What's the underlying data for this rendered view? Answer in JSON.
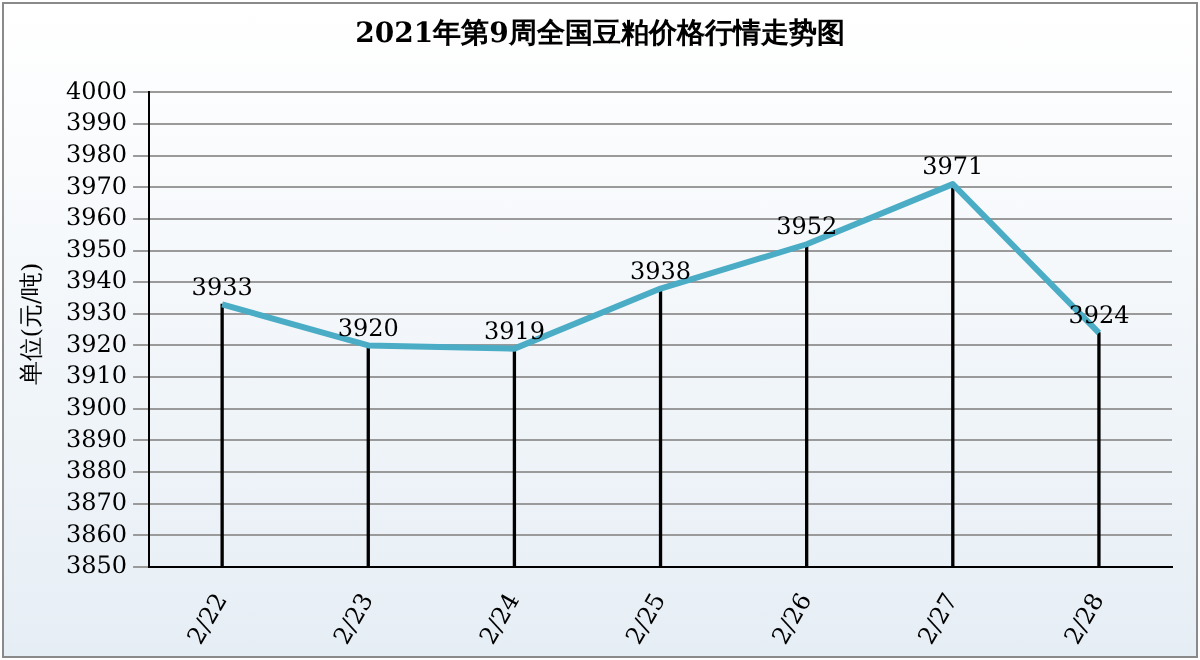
{
  "chart_data": {
    "type": "line",
    "title": "2021年第9周全国豆粕价格行情走势图",
    "ylabel": "单位(元/吨)",
    "categories": [
      "2/22",
      "2/23",
      "2/24",
      "2/25",
      "2/26",
      "2/27",
      "2/28"
    ],
    "series": [
      {
        "type": "bar",
        "color": "#000000",
        "values": [
          3933,
          3920,
          3919,
          3938,
          3952,
          3971,
          3924
        ]
      },
      {
        "color": "#4bacc6",
        "values": [
          3933,
          3920,
          3919,
          3938,
          3952,
          3971,
          3924
        ],
        "value_labels": [
          "3933",
          "3920",
          "3919",
          "3938",
          "3952",
          "3971",
          "3924"
        ]
      }
    ],
    "ylim": [
      3850,
      4000
    ],
    "yticks": [
      3850,
      3860,
      3870,
      3880,
      3890,
      3900,
      3910,
      3920,
      3930,
      3940,
      3950,
      3960,
      3970,
      3980,
      3990,
      4000
    ],
    "grid": "y",
    "legend": false,
    "marker": "none",
    "line_style": "solid"
  }
}
